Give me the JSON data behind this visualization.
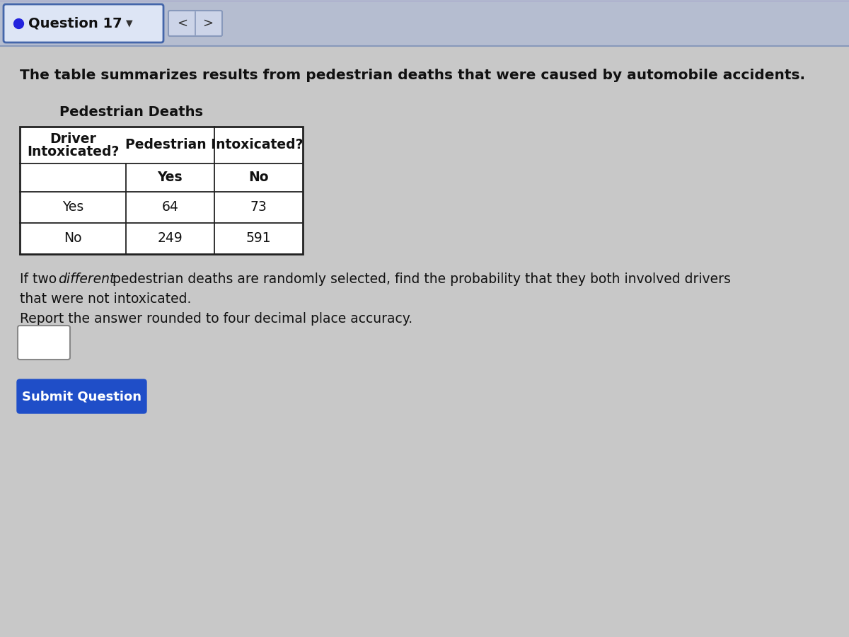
{
  "question_number": "Question 17",
  "bg_color": "#bebebe",
  "content_bg": "#c8c8c8",
  "header_bar_color": "#b0b8cc",
  "intro_text": "The table summarizes results from pedestrian deaths that were caused by automobile accidents.",
  "table_title": "Pedestrian Deaths",
  "col_header_row1_left": "Driver",
  "col_header_row1_right": "Pedestrian Intoxicated?",
  "col_header_row2": [
    "Intoxicated?",
    "Yes",
    "No"
  ],
  "data_rows": [
    [
      "Yes",
      "64",
      "73"
    ],
    [
      "No",
      "249",
      "591"
    ]
  ],
  "question_line1a": "If two ",
  "question_line1b": "different",
  "question_line1c": " pedestrian deaths are randomly selected, find the probability that they both involved drivers",
  "question_line2": "that were not intoxicated.",
  "question_line3": "Report the answer rounded to four decimal place accuracy.",
  "submit_button_text": "Submit Question",
  "submit_button_color": "#1f4ec8",
  "submit_text_color": "#ffffff",
  "question_dot_color": "#2222dd",
  "table_border_color": "#222222",
  "font_color": "#111111"
}
